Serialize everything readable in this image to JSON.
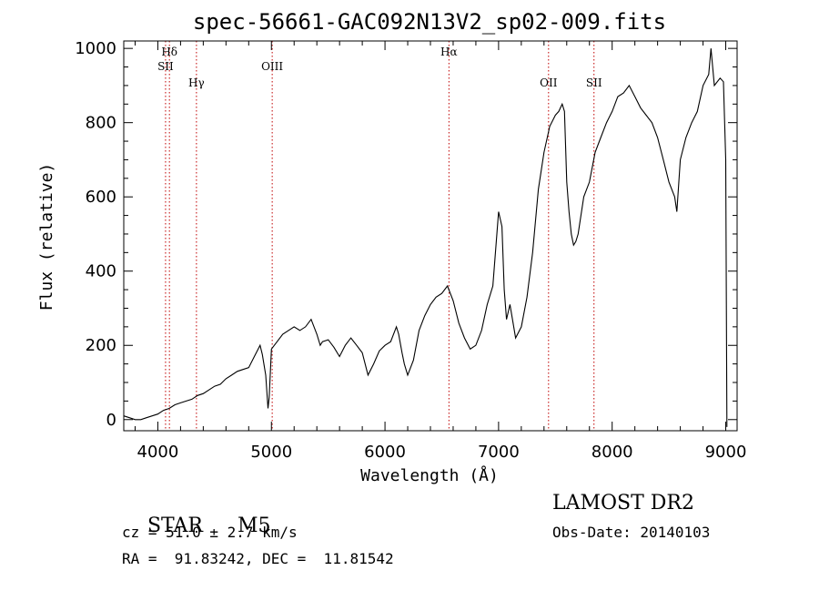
{
  "chart_data": {
    "type": "line",
    "title": "spec-56661-GAC092N13V2_sp02-009.fits",
    "xlabel": "Wavelength (Å)",
    "ylabel": "Flux (relative)",
    "xlim": [
      3700,
      9100
    ],
    "ylim": [
      -30,
      1020
    ],
    "xticks": [
      4000,
      5000,
      6000,
      7000,
      8000,
      9000
    ],
    "yticks": [
      0,
      200,
      400,
      600,
      800,
      1000
    ],
    "series": [
      {
        "color": "#000000",
        "x": [
          3700,
          3750,
          3800,
          3850,
          3900,
          3950,
          4000,
          4050,
          4100,
          4150,
          4200,
          4250,
          4300,
          4350,
          4400,
          4450,
          4500,
          4550,
          4600,
          4650,
          4700,
          4750,
          4800,
          4850,
          4900,
          4920,
          4950,
          4970,
          4980,
          5000,
          5050,
          5100,
          5150,
          5200,
          5250,
          5300,
          5350,
          5400,
          5430,
          5450,
          5500,
          5550,
          5600,
          5650,
          5700,
          5750,
          5800,
          5850,
          5900,
          5950,
          6000,
          6050,
          6100,
          6120,
          6150,
          6170,
          6200,
          6250,
          6300,
          6350,
          6400,
          6450,
          6500,
          6550,
          6600,
          6650,
          6700,
          6750,
          6800,
          6850,
          6900,
          6950,
          7000,
          7030,
          7050,
          7070,
          7100,
          7150,
          7200,
          7250,
          7300,
          7350,
          7400,
          7450,
          7500,
          7530,
          7560,
          7580,
          7600,
          7620,
          7640,
          7660,
          7680,
          7700,
          7750,
          7800,
          7850,
          7900,
          7950,
          8000,
          8050,
          8100,
          8150,
          8200,
          8250,
          8300,
          8350,
          8400,
          8450,
          8500,
          8550,
          8570,
          8600,
          8650,
          8700,
          8750,
          8800,
          8850,
          8870,
          8900,
          8950,
          8980,
          9000,
          9010
        ],
        "y": [
          10,
          5,
          0,
          0,
          5,
          10,
          15,
          25,
          30,
          40,
          45,
          50,
          55,
          65,
          70,
          80,
          90,
          95,
          110,
          120,
          130,
          135,
          140,
          170,
          200,
          175,
          120,
          30,
          60,
          190,
          210,
          230,
          240,
          250,
          240,
          250,
          270,
          230,
          200,
          210,
          215,
          195,
          170,
          200,
          220,
          200,
          180,
          120,
          150,
          185,
          200,
          210,
          250,
          230,
          180,
          150,
          120,
          160,
          240,
          280,
          310,
          330,
          340,
          360,
          320,
          260,
          220,
          190,
          200,
          240,
          310,
          360,
          560,
          520,
          350,
          270,
          310,
          220,
          250,
          330,
          450,
          620,
          720,
          790,
          820,
          830,
          850,
          830,
          640,
          560,
          500,
          470,
          480,
          500,
          600,
          640,
          720,
          760,
          800,
          830,
          870,
          880,
          900,
          870,
          840,
          820,
          800,
          760,
          700,
          640,
          600,
          560,
          700,
          760,
          800,
          830,
          900,
          930,
          1000,
          900,
          920,
          910,
          700,
          -20
        ]
      }
    ],
    "annotations": [
      {
        "label": "Hδ",
        "x": 4102,
        "row": 1
      },
      {
        "label": "SII",
        "x": 4068,
        "row": 2
      },
      {
        "label": "Hγ",
        "x": 4340,
        "row": 3
      },
      {
        "label": "OIII",
        "x": 5007,
        "row": 2
      },
      {
        "label": "Hα",
        "x": 6563,
        "row": 1
      },
      {
        "label": "OII",
        "x": 7440,
        "row": 3
      },
      {
        "label": "SII",
        "x": 7840,
        "row": 3
      }
    ],
    "grid": false
  },
  "info": {
    "class_label": "STAR",
    "subclass": "M5",
    "survey": "LAMOST DR2",
    "cz": "cz = 51.0 ± 2.7 km/s",
    "obs_date": "Obs-Date: 20140103",
    "coords": "RA =  91.83242, DEC =  11.81542"
  }
}
